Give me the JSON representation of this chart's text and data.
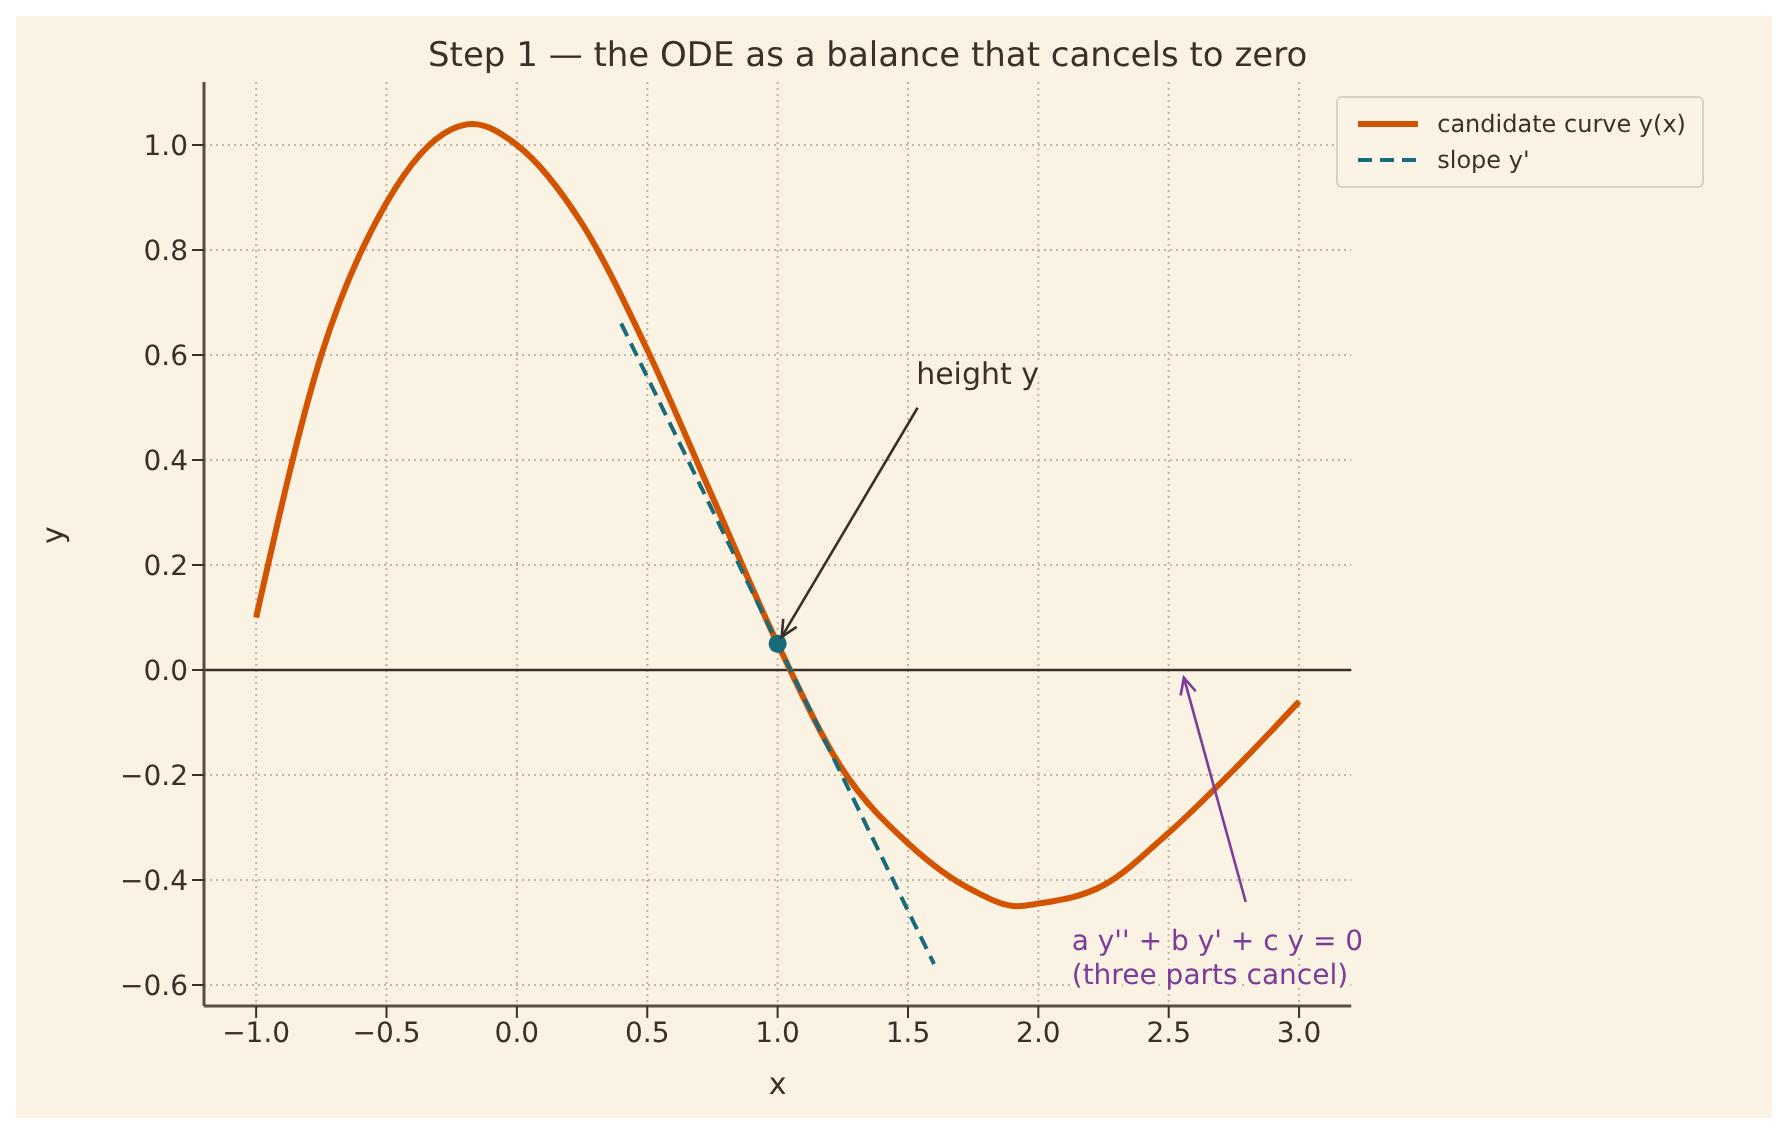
{
  "chart_data": {
    "type": "line",
    "title": "Step 1 — the ODE as a balance that cancels to zero",
    "xlabel": "x",
    "ylabel": "y",
    "xlim": [
      -1.2,
      3.2
    ],
    "ylim": [
      -0.64,
      1.12
    ],
    "xticks": [
      {
        "value": -1,
        "label": "−1.0"
      },
      {
        "value": -0.5,
        "label": "−0.5"
      },
      {
        "value": 0,
        "label": "0.0"
      },
      {
        "value": 0.5,
        "label": "0.5"
      },
      {
        "value": 1,
        "label": "1.0"
      },
      {
        "value": 1.5,
        "label": "1.5"
      },
      {
        "value": 2,
        "label": "2.0"
      },
      {
        "value": 2.5,
        "label": "2.5"
      },
      {
        "value": 3,
        "label": "3.0"
      }
    ],
    "yticks": [
      {
        "value": -0.6,
        "label": "−0.6"
      },
      {
        "value": -0.4,
        "label": "−0.4"
      },
      {
        "value": -0.2,
        "label": "−0.2"
      },
      {
        "value": 0,
        "label": "0.0"
      },
      {
        "value": 0.2,
        "label": "0.2"
      },
      {
        "value": 0.4,
        "label": "0.4"
      },
      {
        "value": 0.6,
        "label": "0.6"
      },
      {
        "value": 0.8,
        "label": "0.8"
      },
      {
        "value": 1,
        "label": "1.0"
      }
    ],
    "grid": true,
    "legend": "top right",
    "series": [
      {
        "name": "candidate curve y(x)",
        "type": "line",
        "color": "#d35400",
        "line_style": "solid",
        "marker": "none",
        "x": [
          -1,
          -0.75,
          -0.5,
          -0.25,
          -0.17,
          0,
          0.25,
          0.5,
          0.75,
          1,
          1.25,
          1.5,
          1.75,
          1.92,
          2,
          2.25,
          2.5,
          2.75,
          3
        ],
        "values": [
          0.1,
          0.6,
          0.89,
          1.03,
          1.04,
          1.0,
          0.85,
          0.61,
          0.33,
          0.05,
          -0.19,
          -0.33,
          -0.42,
          -0.45,
          -0.445,
          -0.41,
          -0.31,
          -0.19,
          -0.06
        ]
      },
      {
        "name": "slope y'",
        "type": "line",
        "color": "#1a6b7a",
        "line_style": "dashed",
        "marker": "none",
        "x": [
          0.4,
          1.6
        ],
        "values": [
          0.66,
          -0.56
        ]
      },
      {
        "type": "scatter",
        "color": "#1a6b7a",
        "marker": "circle",
        "x": [
          1
        ],
        "values": [
          0.05
        ]
      }
    ],
    "ref_lines": [
      {
        "axis": "y",
        "value": 0,
        "color": "#3a3028",
        "line_style": "solid"
      }
    ],
    "annotations": [
      {
        "text": "height y",
        "x": 1,
        "y": 0.05
      },
      {
        "text": "a y'' + b y' + c y = 0\n(three parts cancel)",
        "x": 2.55,
        "y": 0
      }
    ]
  }
}
